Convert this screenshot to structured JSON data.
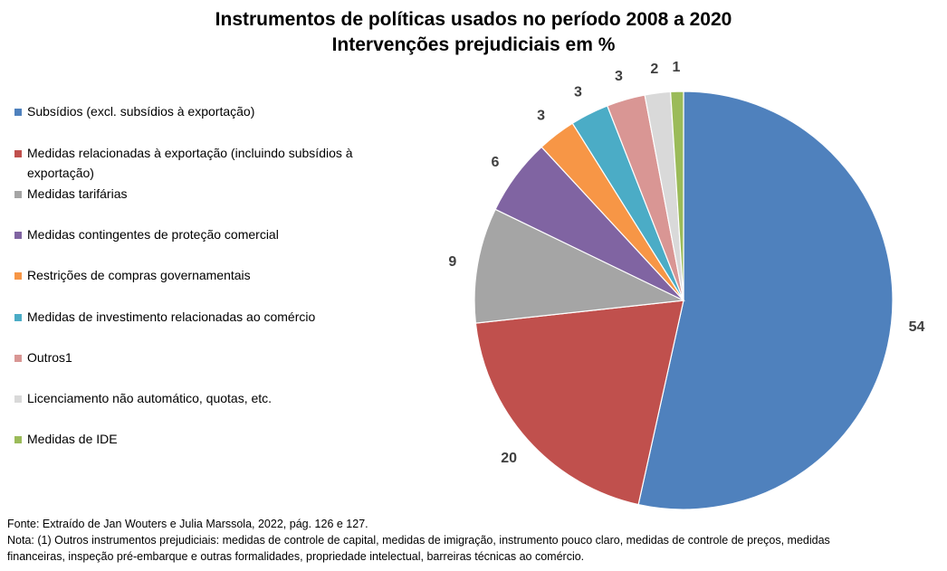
{
  "title_line1": "Instrumentos de políticas usados no período 2008 a 2020",
  "title_line2": "Intervenções prejudiciais em %",
  "chart_data": {
    "type": "pie",
    "title": "Instrumentos de políticas usados no período 2008 a 2020 — Intervenções prejudiciais em %",
    "legend_position": "left",
    "slices": [
      {
        "label": "Subsídios (excl. subsídios à exportação)",
        "value": 54,
        "color": "#4F81BD"
      },
      {
        "label": "Medidas relacionadas à exportação (incluindo subsídios à exportação)",
        "value": 20,
        "color": "#C0504D"
      },
      {
        "label": "Medidas tarifárias",
        "value": 9,
        "color": "#A5A5A5"
      },
      {
        "label": "Medidas contingentes de proteção comercial",
        "value": 6,
        "color": "#8064A2"
      },
      {
        "label": "Restrições de compras governamentais",
        "value": 3,
        "color": "#F79646"
      },
      {
        "label": "Medidas de investimento relacionadas ao comércio",
        "value": 3,
        "color": "#4BACC6"
      },
      {
        "label": "Outros1",
        "value": 3,
        "color": "#D99694"
      },
      {
        "label": "Licenciamento não automático, quotas, etc.",
        "value": 2,
        "color": "#D9D9D9"
      },
      {
        "label": "Medidas de IDE",
        "value": 1,
        "color": "#9BBB59"
      }
    ]
  },
  "footer": {
    "source": "Fonte: Extraído de Jan Wouters e Julia Marssola, 2022,  pág. 126  e 127.",
    "note_line1": "Nota: (1) Outros instrumentos prejudiciais: medidas de controle de capital, medidas de imigração, instrumento pouco claro, medidas de controle de preços, medidas",
    "note_line2": "financeiras, inspeção pré-embarque e outras formalidades, propriedade intelectual, barreiras técnicas ao comércio."
  }
}
